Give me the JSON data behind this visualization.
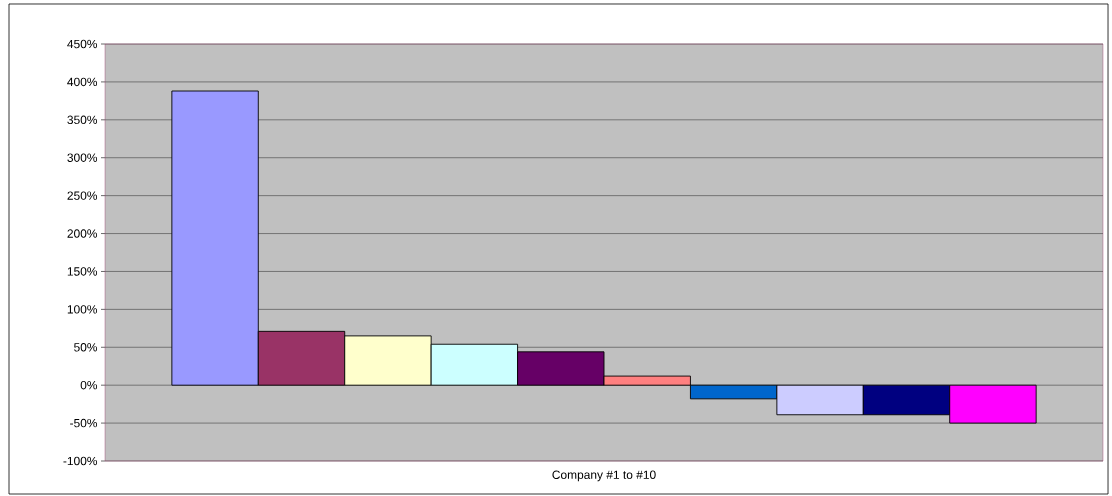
{
  "chart_data": {
    "type": "bar",
    "categories": [
      "Company #1 to #10"
    ],
    "series": [
      {
        "color": "#9999ff",
        "values": [
          388
        ]
      },
      {
        "color": "#993366",
        "values": [
          71
        ]
      },
      {
        "color": "#ffffcc",
        "values": [
          65
        ]
      },
      {
        "color": "#ccffff",
        "values": [
          54
        ]
      },
      {
        "color": "#660066",
        "values": [
          44
        ]
      },
      {
        "color": "#ff8080",
        "values": [
          12
        ]
      },
      {
        "color": "#0066cc",
        "values": [
          -18
        ]
      },
      {
        "color": "#ccccff",
        "values": [
          -39
        ]
      },
      {
        "color": "#000080",
        "values": [
          -39
        ]
      },
      {
        "color": "#ff00ff",
        "values": [
          -50
        ]
      }
    ],
    "ylim": [
      -100,
      450
    ],
    "yticks": [
      {
        "value": -100,
        "label": "-100%"
      },
      {
        "value": -50,
        "label": "-50%"
      },
      {
        "value": 0,
        "label": "0%"
      },
      {
        "value": 50,
        "label": "50%"
      },
      {
        "value": 100,
        "label": "100%"
      },
      {
        "value": 150,
        "label": "150%"
      },
      {
        "value": 200,
        "label": "200%"
      },
      {
        "value": 250,
        "label": "250%"
      },
      {
        "value": 300,
        "label": "300%"
      },
      {
        "value": 350,
        "label": "350%"
      },
      {
        "value": 400,
        "label": "400%"
      },
      {
        "value": 450,
        "label": "450%"
      }
    ],
    "grid": "y"
  }
}
